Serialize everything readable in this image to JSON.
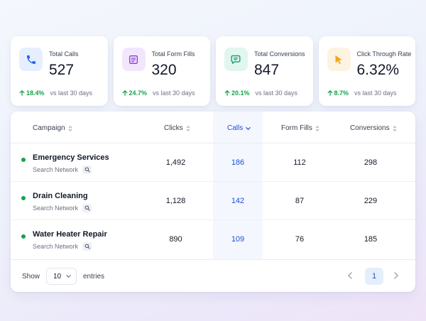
{
  "stats": [
    {
      "label": "Total Calls",
      "value": "527",
      "delta": "18.4%",
      "period": "vs last 30 days",
      "icon": "phone-icon",
      "icon_color": "#2563eb",
      "icon_bg": "#e6efff"
    },
    {
      "label": "Total Form Fills",
      "value": "320",
      "delta": "24.7%",
      "period": "vs last 30 days",
      "icon": "form-icon",
      "icon_color": "#8b3fd6",
      "icon_bg": "#f2e6fd"
    },
    {
      "label": "Total Conversions",
      "value": "847",
      "delta": "20.1%",
      "period": "vs last 30 days",
      "icon": "chat-icon",
      "icon_color": "#0f9f6e",
      "icon_bg": "#e0f6ee"
    },
    {
      "label": "Click Through Rate",
      "value": "6.32%",
      "delta": "8.7%",
      "period": "vs last 30 days",
      "icon": "cursor-icon",
      "icon_color": "#f5a516",
      "icon_bg": "#fdf3e1"
    }
  ],
  "table": {
    "headers": {
      "campaign": "Campaign",
      "clicks": "Clicks",
      "calls": "Calls",
      "form_fills": "Form Fills",
      "conversions": "Conversions"
    },
    "rows": [
      {
        "name": "Emergency Services",
        "network": "Search Network",
        "clicks": "1,492",
        "calls": "186",
        "form_fills": "112",
        "conversions": "298"
      },
      {
        "name": "Drain Cleaning",
        "network": "Search Network",
        "clicks": "1,128",
        "calls": "142",
        "form_fills": "87",
        "conversions": "229"
      },
      {
        "name": "Water Heater Repair",
        "network": "Search Network",
        "clicks": "890",
        "calls": "109",
        "form_fills": "76",
        "conversions": "185"
      }
    ]
  },
  "footer": {
    "show_label": "Show",
    "page_size": "10",
    "entries_label": "entries",
    "current_page": "1"
  },
  "colors": {
    "accent": "#1d4ed8",
    "positive": "#16a34a",
    "status_dot": "#16a34a"
  }
}
